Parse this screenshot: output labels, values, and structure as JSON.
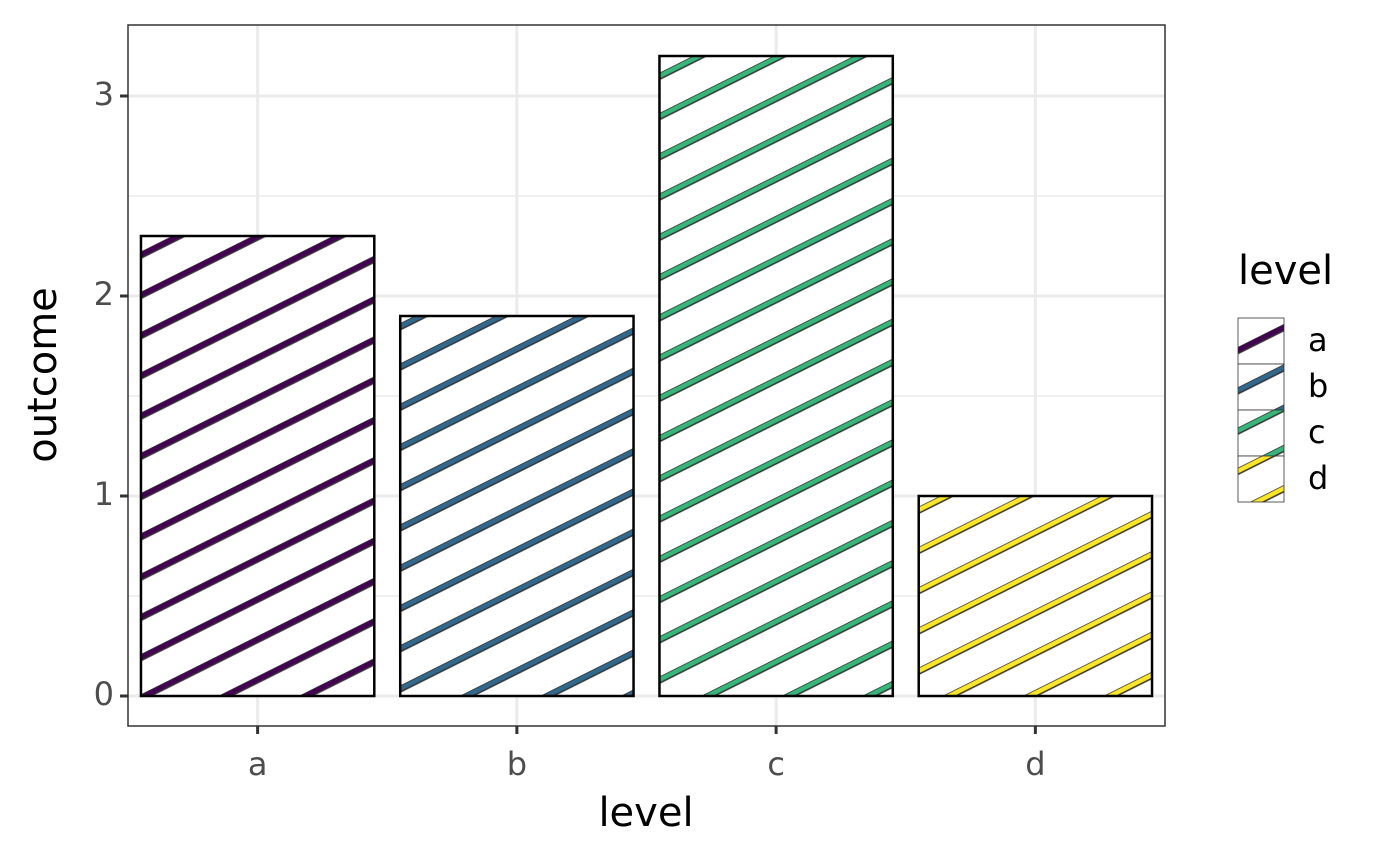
{
  "chart_data": {
    "type": "bar",
    "categories": [
      "a",
      "b",
      "c",
      "d"
    ],
    "values": [
      2.3,
      1.9,
      3.2,
      1.0
    ],
    "colors": [
      "#440154",
      "#31688e",
      "#35b779",
      "#fde725"
    ],
    "ylim": [
      -0.15,
      3.355
    ],
    "yticks": [
      0,
      1,
      2,
      3
    ],
    "x_label": "level",
    "y_label": "outcome",
    "legend_title": "level",
    "grid": true
  }
}
